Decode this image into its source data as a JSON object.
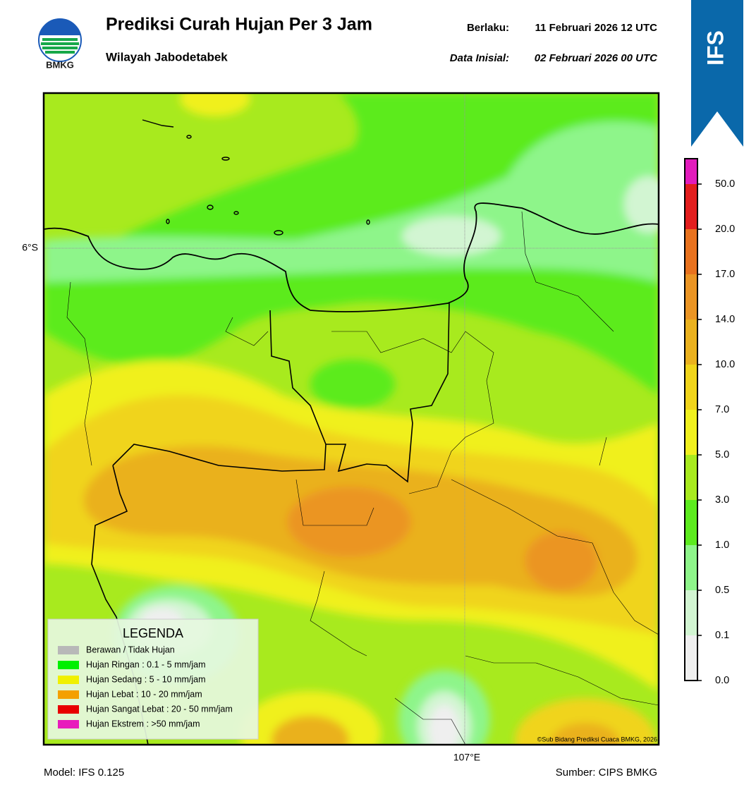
{
  "header": {
    "logo_text": "BMKG",
    "title": "Prediksi Curah Hujan Per 3 Jam",
    "subtitle": "Wilayah Jabodetabek",
    "valid_label": "Berlaku:",
    "valid_value": "11 Februari 2026 12 UTC",
    "init_label": "Data Inisial:",
    "init_value": "02 Februari 2026 00 UTC",
    "badge": "IFS"
  },
  "map": {
    "lat_label": "6°S",
    "lon_label": "107°E",
    "credit": "©Sub Bidang Prediksi Cuaca BMKG, 2026"
  },
  "legend": {
    "title": "LEGENDA",
    "items": [
      {
        "label": "Berawan / Tidak Hujan",
        "color": "#b8b8b8"
      },
      {
        "label": "Hujan Ringan : 0.1 - 5 mm/jam",
        "color": "#00f000"
      },
      {
        "label": "Hujan Sedang : 5 - 10 mm/jam",
        "color": "#f0f000"
      },
      {
        "label": "Hujan Lebat : 10 - 20 mm/jam",
        "color": "#f4a000"
      },
      {
        "label": "Hujan Sangat Lebat : 20 - 50 mm/jam",
        "color": "#e80000"
      },
      {
        "label": "Hujan Ekstrem : >50 mm/jam",
        "color": "#e81cbc"
      }
    ]
  },
  "colorbar": {
    "labels": [
      "0.0",
      "0.1",
      "0.5",
      "1.0",
      "3.0",
      "5.0",
      "7.0",
      "10.0",
      "14.0",
      "17.0",
      "20.0",
      "50.0"
    ],
    "colors": [
      "#efefef",
      "#d2f5d2",
      "#8ef58a",
      "#5ceb1e",
      "#a8ea1e",
      "#f0f01e",
      "#f0d41a",
      "#eab11e",
      "#eb9524",
      "#e8721e",
      "#e21e1e",
      "#e21cbc"
    ]
  },
  "footer": {
    "model": "Model: IFS 0.125",
    "source": "Sumber: CIPS BMKG"
  }
}
